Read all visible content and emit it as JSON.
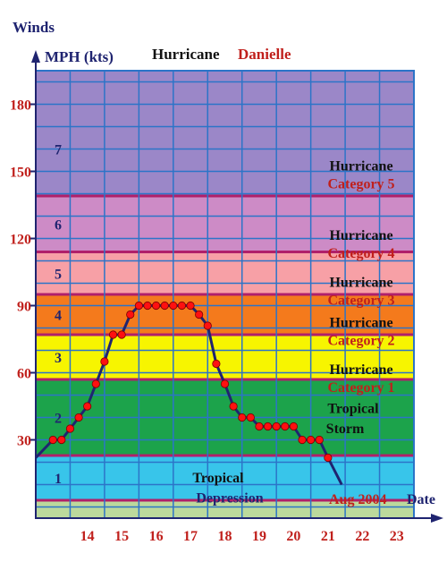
{
  "header": {
    "title_word": "Hurricane",
    "title_name": "Danielle",
    "y_title": "Winds",
    "y_units": "MPH (kts)",
    "x_title": "Date",
    "date_note": "Aug 2004"
  },
  "chart_data": {
    "type": "line",
    "x_unit": "day of August 2004",
    "y_unit": "MPH",
    "xlim": [
      13,
      24
    ],
    "ylim": [
      -5,
      195
    ],
    "x_ticks": [
      14,
      15,
      16,
      17,
      18,
      19,
      20,
      21,
      22,
      23
    ],
    "y_ticks": [
      30,
      60,
      90,
      120,
      150,
      180
    ],
    "grid": true,
    "bands": [
      {
        "from": -5,
        "to": 3,
        "color": "#bcd99c",
        "label_lines": [],
        "number": ""
      },
      {
        "from": 3,
        "to": 23,
        "color": "#38c5ea",
        "label_lines": [
          "Tropical",
          "Depression"
        ],
        "number": "1"
      },
      {
        "from": 23,
        "to": 57,
        "color": "#1ca34b",
        "label_lines": [
          "Tropical",
          "Storm"
        ],
        "number": "2"
      },
      {
        "from": 57,
        "to": 77,
        "color": "#f7f500",
        "label_lines": [
          "Hurricane",
          "Category 1"
        ],
        "number": "3"
      },
      {
        "from": 77,
        "to": 95,
        "color": "#f47a1c",
        "label_lines": [
          "Hurricane",
          "Category 2"
        ],
        "number": "4"
      },
      {
        "from": 95,
        "to": 114,
        "color": "#f7a0a6",
        "label_lines": [
          "Hurricane",
          "Category 3"
        ],
        "number": "5"
      },
      {
        "from": 114,
        "to": 139,
        "color": "#cd8bc6",
        "label_lines": [
          "Hurricane",
          "Category 4"
        ],
        "number": "6"
      },
      {
        "from": 139,
        "to": 195,
        "color": "#9b87c8",
        "label_lines": [
          "Hurricane",
          "Category 5"
        ],
        "number": "7"
      }
    ],
    "series": [
      {
        "color": "#1f2470",
        "marker_color": "#ff1010",
        "points": [
          [
            13.0,
            22
          ],
          [
            13.5,
            30
          ],
          [
            13.75,
            30
          ],
          [
            14.0,
            35
          ],
          [
            14.25,
            40
          ],
          [
            14.5,
            45
          ],
          [
            14.75,
            55
          ],
          [
            15.0,
            65
          ],
          [
            15.25,
            77
          ],
          [
            15.5,
            77
          ],
          [
            15.75,
            86
          ],
          [
            16.0,
            90
          ],
          [
            16.25,
            90
          ],
          [
            16.5,
            90
          ],
          [
            16.75,
            90
          ],
          [
            17.0,
            90
          ],
          [
            17.25,
            90
          ],
          [
            17.5,
            90
          ],
          [
            17.75,
            86
          ],
          [
            18.0,
            81
          ],
          [
            18.25,
            64
          ],
          [
            18.5,
            55
          ],
          [
            18.75,
            45
          ],
          [
            19.0,
            40
          ],
          [
            19.25,
            40
          ],
          [
            19.5,
            36
          ],
          [
            19.75,
            36
          ],
          [
            20.0,
            36
          ],
          [
            20.25,
            36
          ],
          [
            20.5,
            36
          ],
          [
            20.75,
            30
          ],
          [
            21.0,
            30
          ],
          [
            21.25,
            30
          ],
          [
            21.5,
            22
          ],
          [
            21.9,
            10
          ]
        ],
        "marker_start": 1,
        "marker_end": 33
      }
    ]
  }
}
